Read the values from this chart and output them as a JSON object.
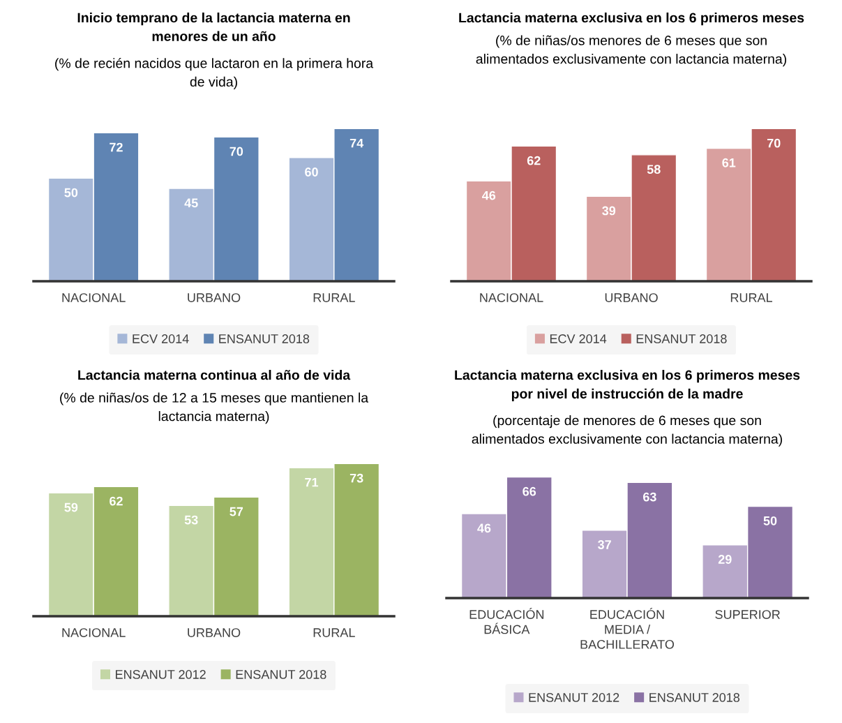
{
  "chart_data": [
    {
      "type": "bar",
      "title": "Inicio temprano de la lactancia materna en\nmenores de un año",
      "subtitle": "(% de recién nacidos que lactaron en la primera hora\nde vida)",
      "categories": [
        "NACIONAL",
        "URBANO",
        "RURAL"
      ],
      "series": [
        {
          "name": "ECV 2014",
          "color": "#a5b7d7",
          "values": [
            50,
            45,
            60
          ]
        },
        {
          "name": "ENSANUT 2018",
          "color": "#5f84b3",
          "values": [
            72,
            70,
            74
          ]
        }
      ],
      "data_labels": true,
      "legend": "bottom",
      "grid": false,
      "tick_labels": "x"
    },
    {
      "type": "bar",
      "title": "Lactancia materna exclusiva en los 6 primeros meses",
      "subtitle": "(% de niñas/os menores de 6 meses que son\nalimentados exclusivamente con lactancia materna)",
      "categories": [
        "NACIONAL",
        "URBANO",
        "RURAL"
      ],
      "series": [
        {
          "name": "ECV 2014",
          "color": "#d9a09f",
          "values": [
            46,
            39,
            61
          ]
        },
        {
          "name": "ENSANUT 2018",
          "color": "#b9605e",
          "values": [
            62,
            58,
            70
          ]
        }
      ],
      "data_labels": true,
      "legend": "bottom",
      "grid": false,
      "tick_labels": "x"
    },
    {
      "type": "bar",
      "title": "Lactancia materna continua al año de vida",
      "subtitle": "(% de niñas/os de 12 a 15 meses que mantienen la\nlactancia materna)",
      "categories": [
        "NACIONAL",
        "URBANO",
        "RURAL"
      ],
      "series": [
        {
          "name": "ENSANUT 2012",
          "color": "#c3d6a5",
          "values": [
            59,
            53,
            71
          ]
        },
        {
          "name": "ENSANUT 2018",
          "color": "#9bb462",
          "values": [
            62,
            57,
            73
          ]
        }
      ],
      "data_labels": true,
      "legend": "bottom",
      "grid": false,
      "tick_labels": "x"
    },
    {
      "type": "bar",
      "title": "Lactancia materna exclusiva en los 6 primeros meses\npor nivel de instrucción de la madre",
      "subtitle": "(porcentaje de menores de 6 meses que son\nalimentados exclusivamente con lactancia materna)",
      "categories": [
        "EDUCACIÓN\nBÁSICA",
        "EDUCACIÓN\nMEDIA /\nBACHILLERATO",
        "SUPERIOR"
      ],
      "series": [
        {
          "name": "ENSANUT 2012",
          "color": "#b7a7ca",
          "values": [
            46,
            37,
            29
          ]
        },
        {
          "name": "ENSANUT 2018",
          "color": "#8a72a4",
          "values": [
            66,
            63,
            50
          ]
        }
      ],
      "data_labels": true,
      "legend": "bottom",
      "grid": false,
      "tick_labels": "x"
    }
  ]
}
